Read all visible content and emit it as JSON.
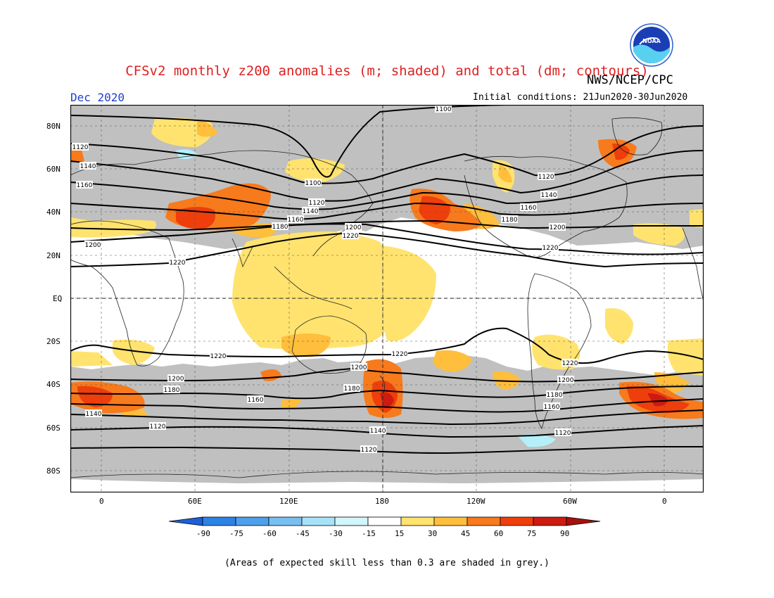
{
  "header": {
    "title": "CFSv2 monthly z200 anomalies (m; shaded) and total (dm; contours)",
    "agency": "NWS/NCEP/CPC",
    "month": "Dec 2020",
    "initial_conditions": "Initial conditions: 21Jun2020-30Jun2020",
    "logo_text": "NOAA"
  },
  "map": {
    "lat_labels": [
      "80N",
      "60N",
      "40N",
      "20N",
      "EQ",
      "20S",
      "40S",
      "60S",
      "80S"
    ],
    "lon_labels": [
      "0",
      "60E",
      "120E",
      "180",
      "120W",
      "60W",
      "0"
    ],
    "contour_labels": [
      "1100",
      "1120",
      "1140",
      "1160",
      "1180",
      "1200",
      "1220"
    ],
    "colors": {
      "grey_low_skill": "#c0c0c0",
      "pos_15_30": "#ffe36e",
      "pos_30_45": "#ffbe3c",
      "pos_45_60": "#f77a1c",
      "pos_60_75": "#ee3e0c",
      "pos_75_90": "#cc1b10",
      "neg_15_30": "#b4f0fa"
    }
  },
  "colorbar": {
    "labels": [
      "-90",
      "-75",
      "-60",
      "-45",
      "-30",
      "-15",
      "15",
      "30",
      "45",
      "60",
      "75",
      "90"
    ],
    "colors": [
      "#1c5fd9",
      "#2d82e6",
      "#4ea0ec",
      "#78bff2",
      "#a8e2f8",
      "#d2f6fb",
      "#ffffff",
      "#ffe36e",
      "#ffbe3c",
      "#f77a1c",
      "#ee3e0c",
      "#cc1b10",
      "#a8100c"
    ]
  },
  "footnote": "(Areas of expected skill less than 0.3 are shaded in grey.)"
}
